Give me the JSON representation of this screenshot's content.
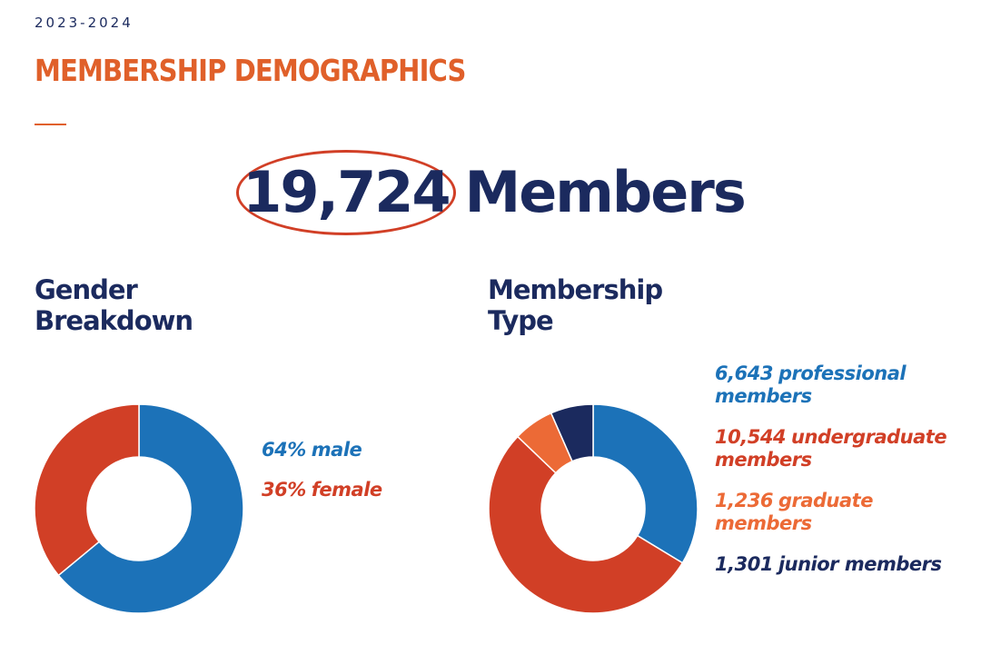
{
  "header": {
    "period": "2023-2024",
    "title": "MEMBERSHIP DEMOGRAPHICS"
  },
  "headline": {
    "count": "19,724",
    "label": "Members"
  },
  "chart_data": [
    {
      "type": "pie",
      "title": "Gender Breakdown",
      "categories": [
        "male",
        "female"
      ],
      "values": [
        64,
        36
      ],
      "value_labels": [
        "64%",
        "36%"
      ],
      "colors": [
        "#1c72b8",
        "#d13f26"
      ]
    },
    {
      "type": "pie",
      "title": "Membership Type",
      "categories": [
        "professional members",
        "undergraduate members",
        "graduate members",
        "junior members"
      ],
      "values": [
        6643,
        10544,
        1236,
        1301
      ],
      "value_labels": [
        "6,643",
        "10,544",
        "1,236",
        "1,301"
      ],
      "colors": [
        "#1c72b8",
        "#d13f26",
        "#ec6a36",
        "#1b2a5e"
      ]
    }
  ]
}
